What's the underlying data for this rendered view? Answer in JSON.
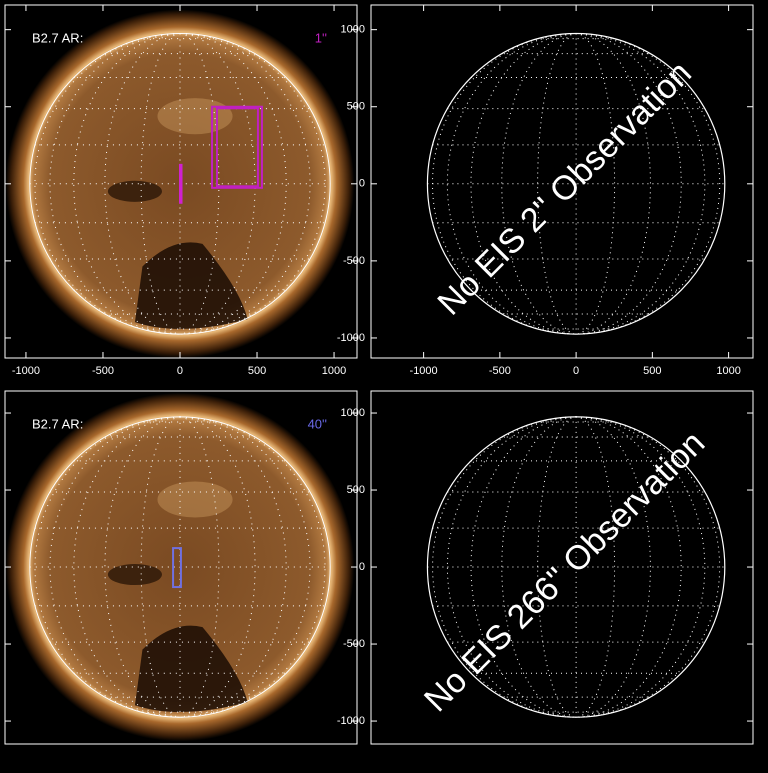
{
  "chart_data": [
    {
      "type": "solar-image",
      "annotation_left": "B2.7 AR:",
      "annotation_right": "1''",
      "annotation_right_color": "#c020c0",
      "xlim": [
        -1136,
        1149
      ],
      "ylim": [
        -1130,
        1160
      ],
      "xticks": [
        -1000,
        -500,
        0,
        500,
        1000
      ],
      "yticks": [
        1000,
        500,
        0,
        -500,
        -1000
      ],
      "boxes": [
        {
          "x": [
            208,
            532
          ],
          "y": [
            500,
            -26
          ],
          "color": "#c020c0"
        },
        {
          "x": [
            240,
            506
          ],
          "y": [
            490,
            -16
          ],
          "color": "#c020c0"
        },
        {
          "x": [
            0,
            6
          ],
          "y": [
            123,
            -123
          ],
          "color": "#d020d0"
        }
      ]
    },
    {
      "type": "empty-disk",
      "message": "No EIS 2'' Observation",
      "xlim": [
        -1345,
        1160
      ],
      "ylim": [
        -1130,
        1160
      ],
      "xticks": [
        -1000,
        -500,
        0,
        500,
        1000
      ],
      "yticks": [
        1000,
        500,
        0,
        -500,
        -1000
      ]
    },
    {
      "type": "solar-image",
      "annotation_left": "B2.7 AR:",
      "annotation_right": "40''",
      "annotation_right_color": "#6a6ae8",
      "xlim": [
        -1136,
        1149
      ],
      "ylim": [
        -1149,
        1143
      ],
      "yticks": [
        1000,
        500,
        0,
        -500,
        -1000
      ],
      "boxes": [
        {
          "x": [
            -45,
            6
          ],
          "y": [
            123,
            -130
          ],
          "color": "#7070e0"
        }
      ]
    },
    {
      "type": "empty-disk",
      "message": "No EIS 266'' Observation",
      "xlim": [
        -1345,
        1160
      ],
      "ylim": [
        -1149,
        1143
      ],
      "yticks": [
        1000,
        500,
        0,
        -500,
        -1000
      ]
    }
  ]
}
